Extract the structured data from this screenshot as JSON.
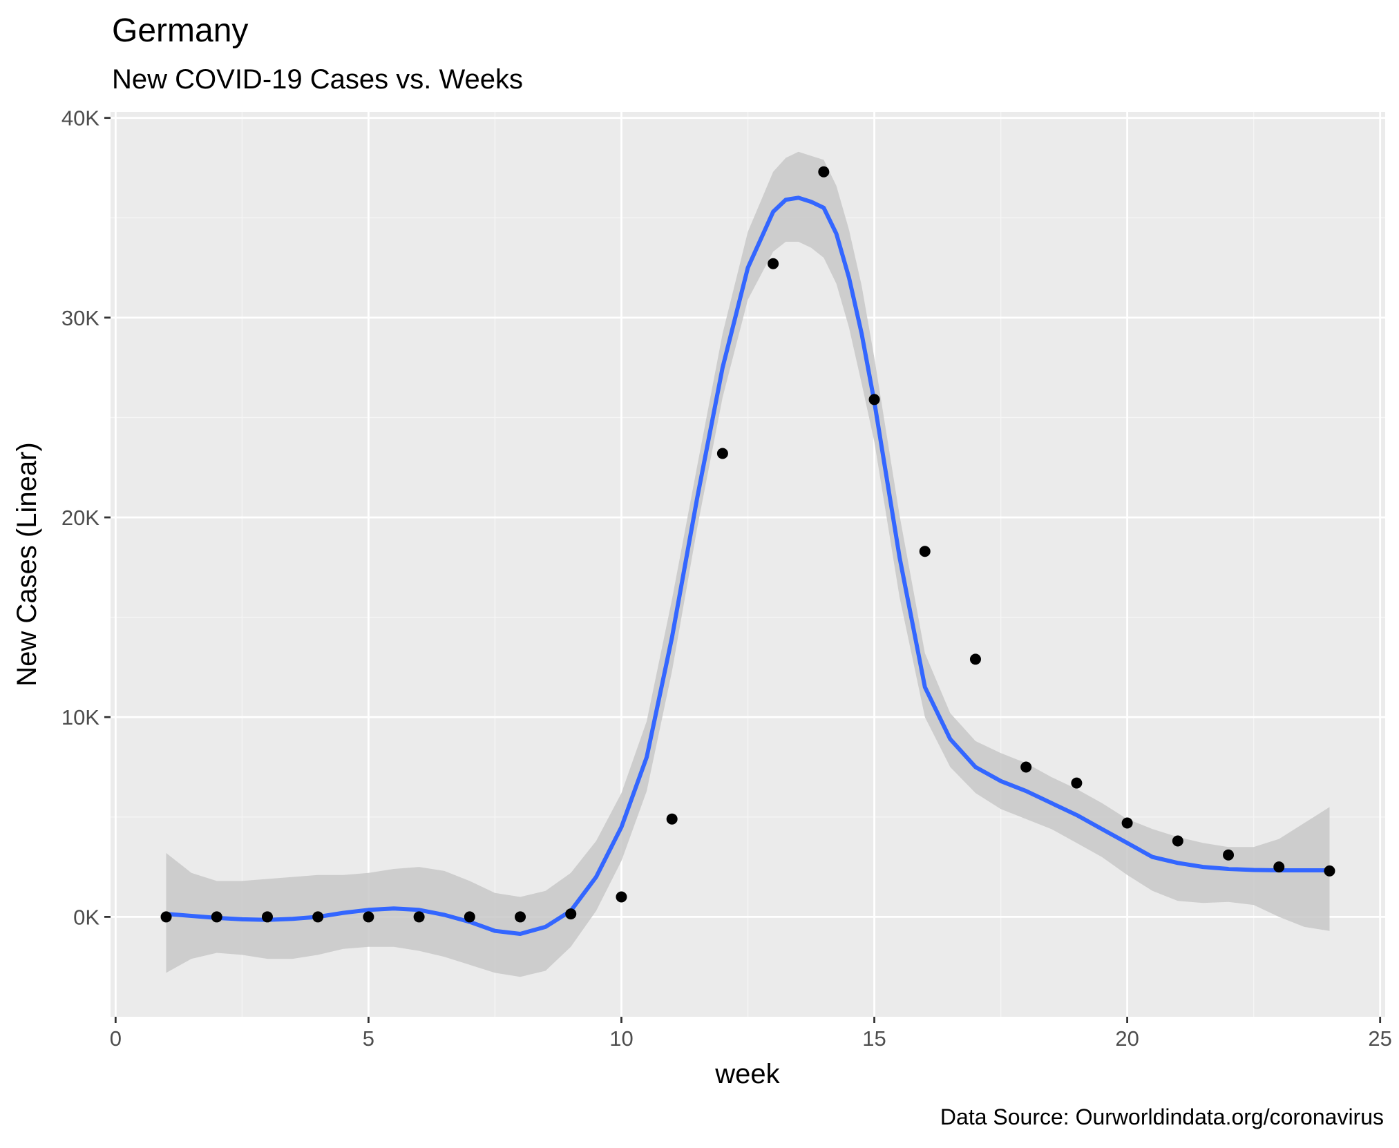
{
  "chart_data": {
    "type": "scatter",
    "title": "Germany",
    "subtitle": "New COVID-19 Cases vs. Weeks",
    "xlabel": "week",
    "ylabel": "New Cases (Linear)",
    "caption": "Data Source: Ourworldindata.org/coronavirus",
    "xlim": [
      -0.1,
      25.1
    ],
    "ylim": [
      -5000,
      40300
    ],
    "x_ticks": [
      0,
      5,
      10,
      15,
      20,
      25
    ],
    "x_tick_labels": [
      "0",
      "5",
      "10",
      "15",
      "20",
      "25"
    ],
    "y_ticks": [
      0,
      10000,
      20000,
      30000,
      40000
    ],
    "y_tick_labels": [
      "0K",
      "10K",
      "20K",
      "30K",
      "40K"
    ],
    "grid": true,
    "series": [
      {
        "type": "scatter",
        "x": [
          1,
          2,
          3,
          4,
          5,
          6,
          7,
          8,
          9,
          10,
          11,
          12,
          13,
          14,
          15,
          16,
          17,
          18,
          19,
          20,
          21,
          22,
          23,
          24
        ],
        "y": [
          0,
          0,
          0,
          0,
          0,
          0,
          0,
          0,
          150,
          1000,
          4900,
          23200,
          32700,
          37300,
          25900,
          18300,
          12900,
          7500,
          6700,
          4700,
          3800,
          3100,
          2500,
          2300
        ]
      },
      {
        "type": "smooth",
        "x": [
          1,
          1.5,
          2,
          2.5,
          3,
          3.5,
          4,
          4.5,
          5,
          5.5,
          6,
          6.5,
          7,
          7.5,
          8,
          8.5,
          9,
          9.5,
          10,
          10.5,
          11,
          11.5,
          12,
          12.5,
          13,
          13.25,
          13.5,
          13.75,
          14,
          14.25,
          14.5,
          14.75,
          15,
          15.5,
          16,
          16.5,
          17,
          17.5,
          18,
          18.5,
          19,
          19.5,
          20,
          20.5,
          21,
          21.5,
          22,
          22.5,
          23,
          23.5,
          24
        ],
        "y": [
          150,
          50,
          -50,
          -120,
          -150,
          -100,
          0,
          200,
          350,
          420,
          350,
          100,
          -250,
          -700,
          -850,
          -500,
          300,
          2000,
          4500,
          8000,
          14000,
          21000,
          27500,
          32500,
          35300,
          35900,
          36000,
          35800,
          35500,
          34200,
          32000,
          29200,
          25800,
          18000,
          11500,
          8900,
          7500,
          6800,
          6300,
          5700,
          5100,
          4400,
          3700,
          3000,
          2700,
          2500,
          2400,
          2350,
          2330,
          2330,
          2330
        ],
        "lower": [
          -2800,
          -2100,
          -1800,
          -1900,
          -2100,
          -2100,
          -1900,
          -1600,
          -1500,
          -1500,
          -1700,
          -2000,
          -2400,
          -2800,
          -3000,
          -2700,
          -1500,
          300,
          2800,
          6300,
          12300,
          19500,
          26000,
          30900,
          33300,
          33800,
          33800,
          33500,
          33000,
          31700,
          29500,
          26700,
          23800,
          16000,
          10000,
          7500,
          6200,
          5400,
          4900,
          4400,
          3700,
          3000,
          2100,
          1300,
          800,
          700,
          750,
          600,
          0,
          -500,
          -700
        ],
        "upper": [
          3200,
          2200,
          1800,
          1800,
          1900,
          2000,
          2100,
          2100,
          2200,
          2400,
          2500,
          2300,
          1800,
          1200,
          1000,
          1300,
          2200,
          3800,
          6200,
          9800,
          15900,
          22600,
          29200,
          34300,
          37300,
          38000,
          38300,
          38100,
          37900,
          36600,
          34400,
          31600,
          28000,
          20100,
          13200,
          10200,
          8800,
          8200,
          7700,
          7000,
          6400,
          5700,
          4900,
          4400,
          4000,
          3700,
          3500,
          3500,
          3900,
          4700,
          5500
        ]
      }
    ],
    "colors": {
      "panel_background": "#ebebeb",
      "grid_major": "#ffffff",
      "grid_minor": "#f5f5f5",
      "point": "#000000",
      "smooth_line": "#3366ff",
      "ribbon": "#c8c8c8",
      "tick_text": "#4d4d4d",
      "axis_tick": "#333333"
    }
  }
}
